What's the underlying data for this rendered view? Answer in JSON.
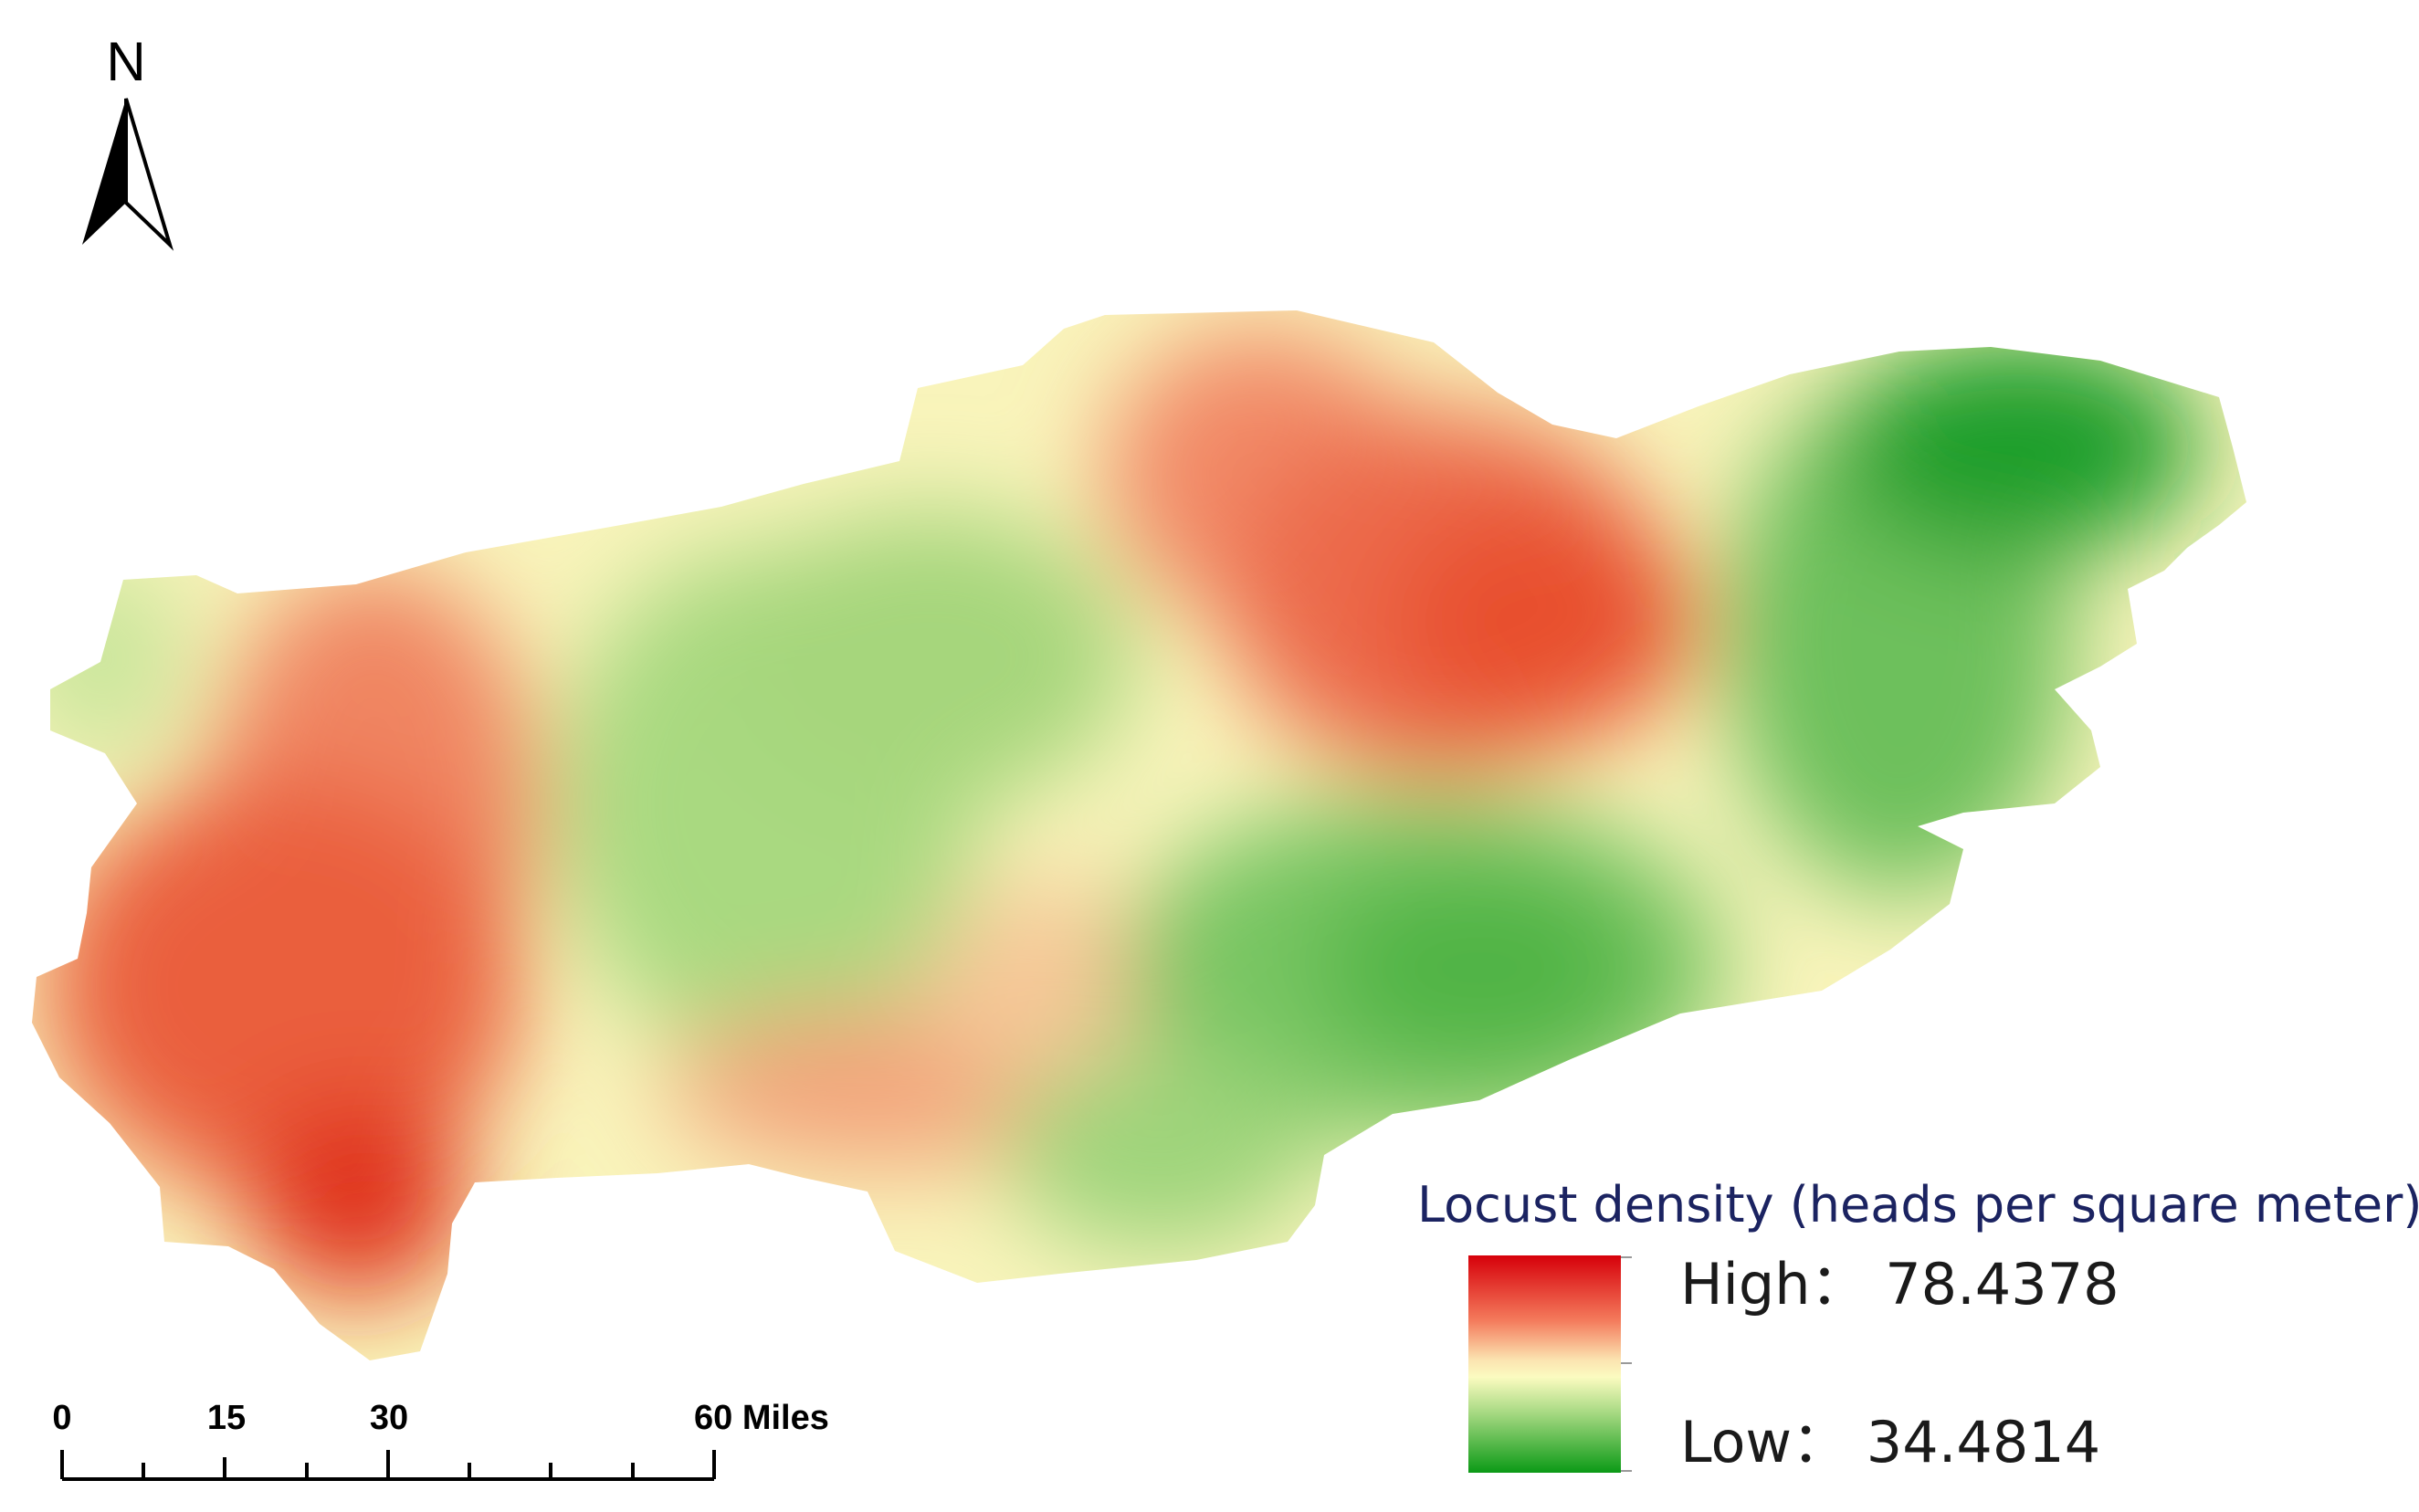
{
  "north_arrow": {
    "letter": "N",
    "icon": "north-arrow-icon"
  },
  "legend": {
    "title": "Locust density (heads per square meter)",
    "high_label": "High： 78.4378",
    "low_label": "Low： 34.4814",
    "high_value": 78.4378,
    "low_value": 34.4814,
    "colors": {
      "high": "#d6000a",
      "mid": "#fbfbc0",
      "low": "#0b9a16"
    }
  },
  "scale_bar": {
    "labels": [
      "0",
      "15",
      "30",
      "60 Miles"
    ],
    "unit": "Miles"
  },
  "map": {
    "colors": {
      "red": "#e5402f",
      "orange": "#f28a68",
      "yellow": "#f9f6bd",
      "light_green": "#b7e08f",
      "green": "#56b948",
      "dark_green": "#0a9617"
    }
  }
}
